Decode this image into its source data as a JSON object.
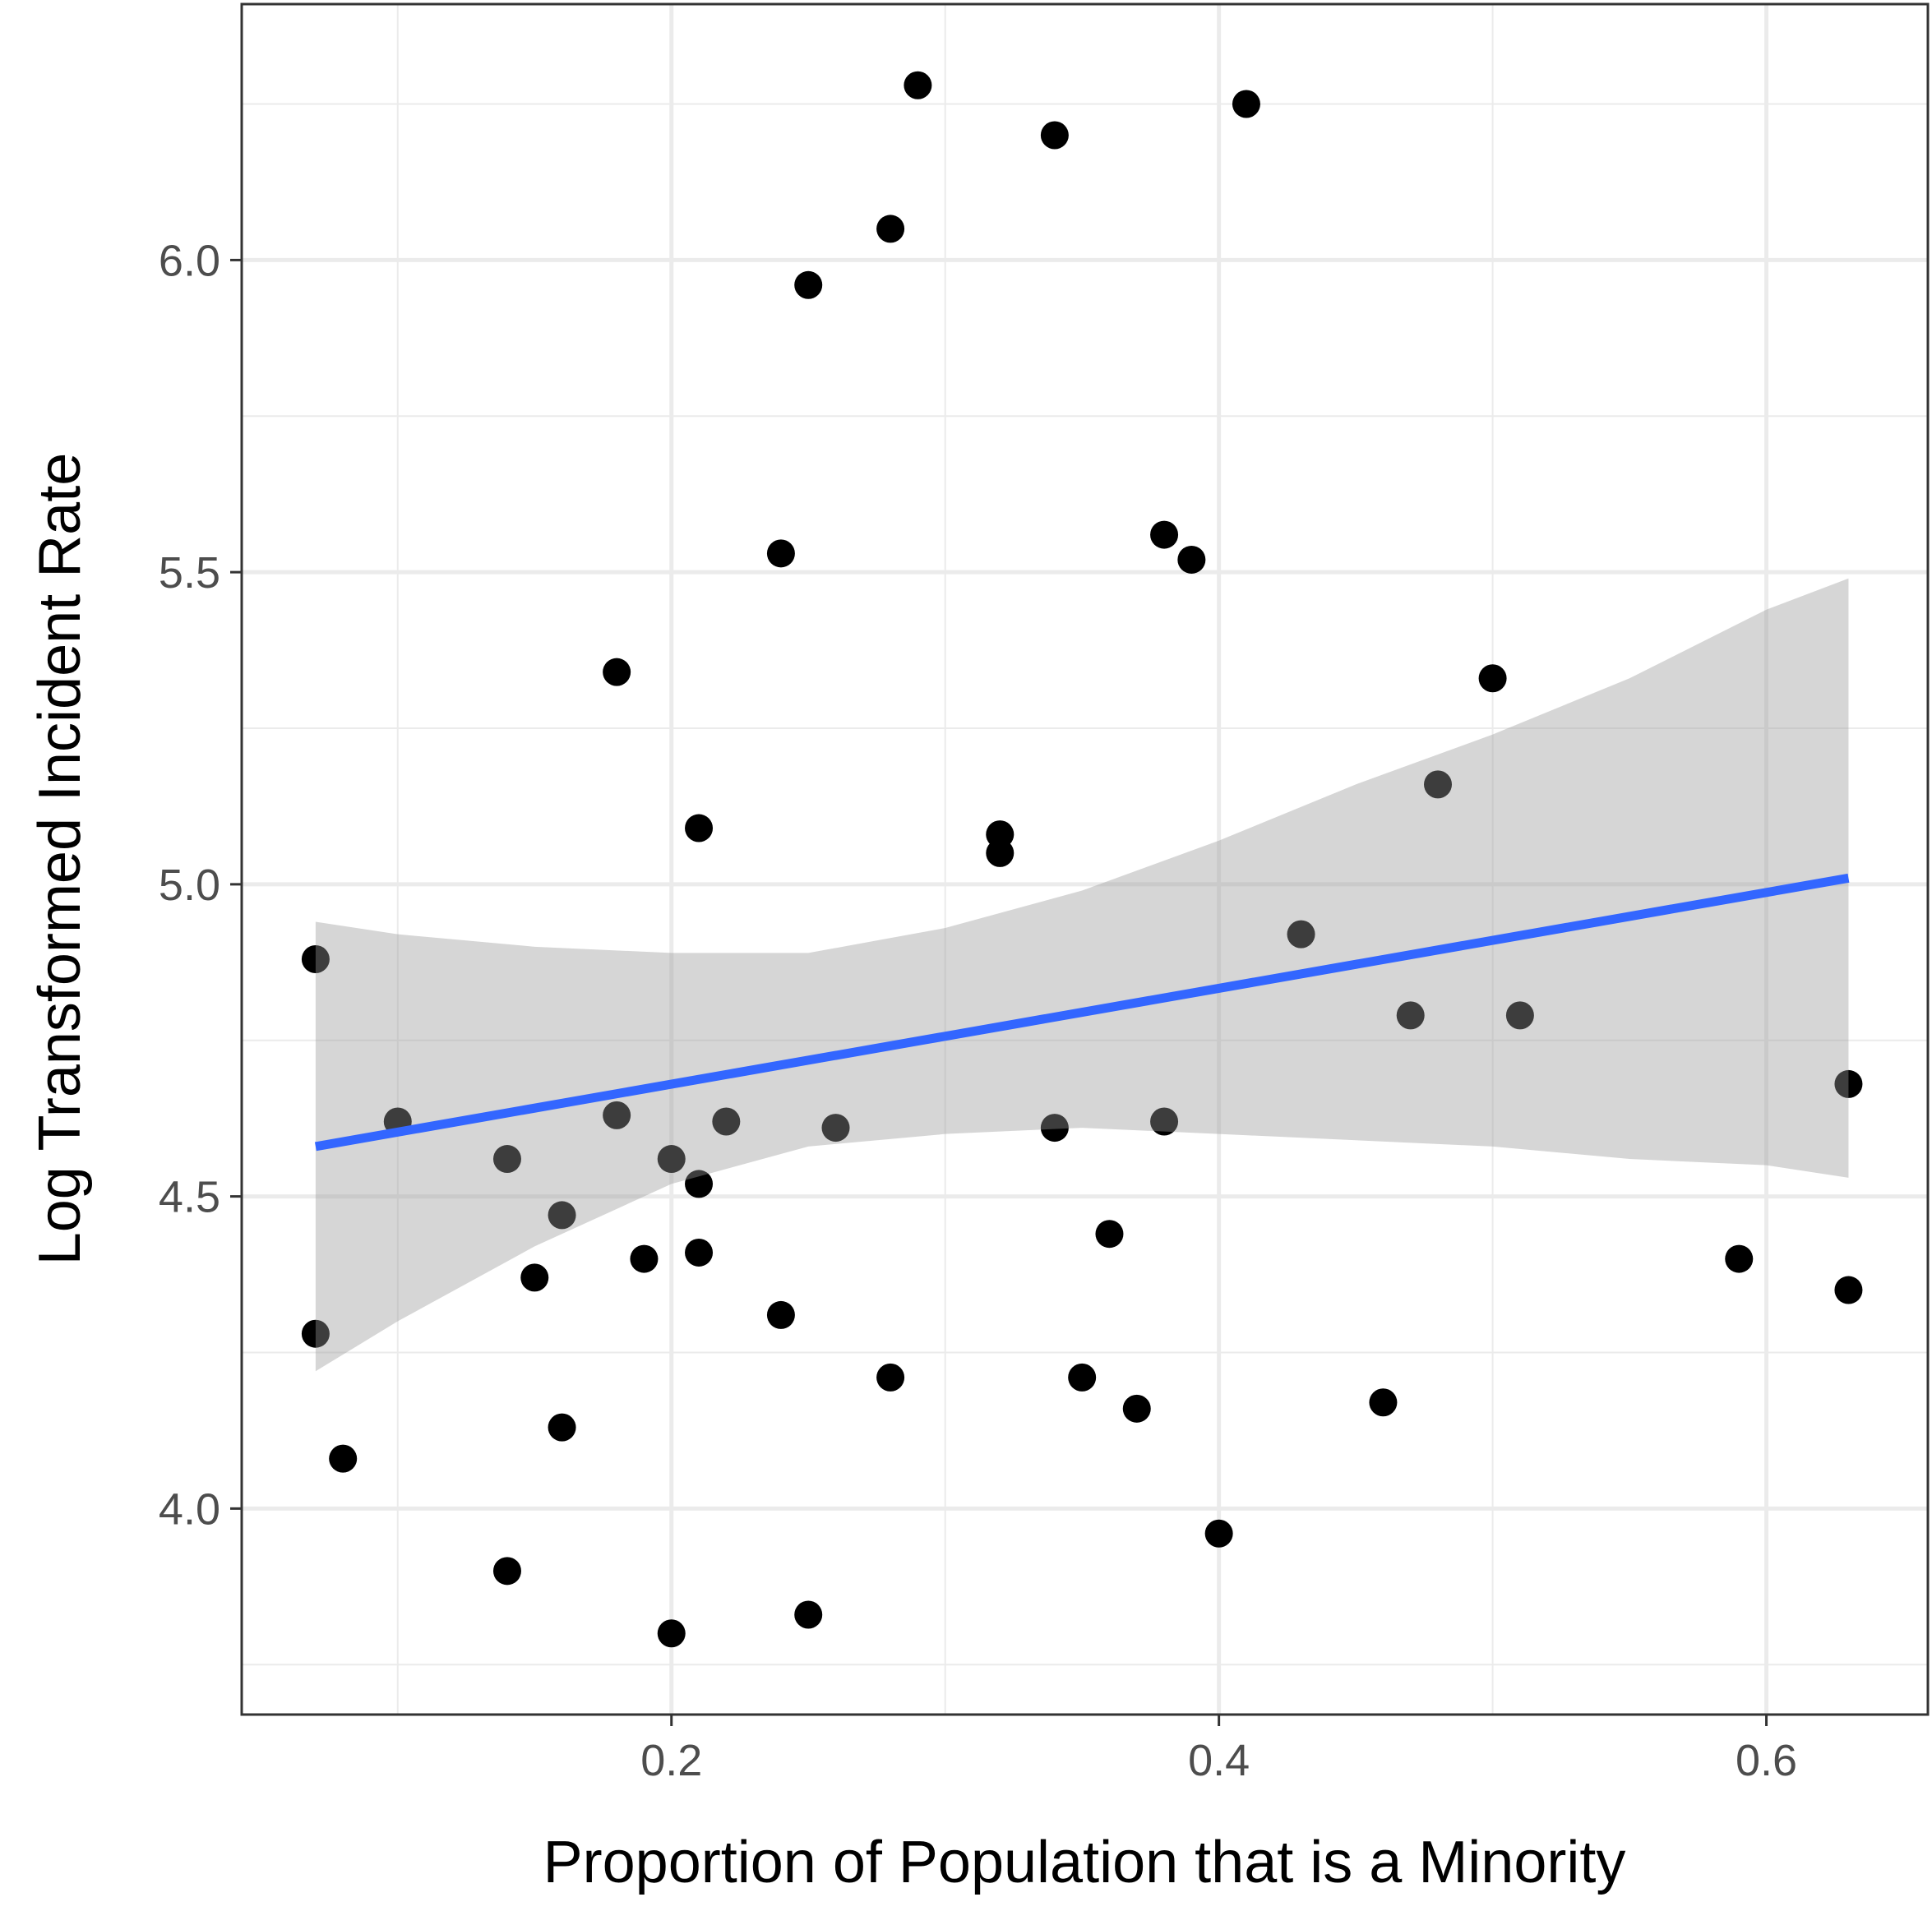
{
  "chart_data": {
    "type": "scatter",
    "xlabel": "Proportion of Population that is a Minority",
    "ylabel": "Log Transformed Incident Rate",
    "xlim": [
      0.043,
      0.659
    ],
    "ylim": [
      3.67,
      6.41
    ],
    "x_ticks": [
      0.2,
      0.4,
      0.6
    ],
    "x_tick_labels": [
      "0.2",
      "0.4",
      "0.6"
    ],
    "x_minor_ticks": [
      0.1,
      0.3,
      0.5
    ],
    "y_ticks": [
      4.0,
      4.5,
      5.0,
      5.5,
      6.0
    ],
    "y_tick_labels": [
      "4.0",
      "4.5",
      "5.0",
      "5.5",
      "6.0"
    ],
    "y_minor_ticks": [
      3.75,
      4.25,
      4.75,
      5.25,
      5.75,
      6.25
    ],
    "grid": true,
    "points": [
      {
        "x": 0.07,
        "y": 4.88
      },
      {
        "x": 0.07,
        "y": 4.28
      },
      {
        "x": 0.08,
        "y": 4.08
      },
      {
        "x": 0.1,
        "y": 4.62
      },
      {
        "x": 0.14,
        "y": 4.56
      },
      {
        "x": 0.14,
        "y": 3.9
      },
      {
        "x": 0.15,
        "y": 4.37
      },
      {
        "x": 0.16,
        "y": 4.47
      },
      {
        "x": 0.16,
        "y": 4.13
      },
      {
        "x": 0.18,
        "y": 5.34
      },
      {
        "x": 0.18,
        "y": 4.63
      },
      {
        "x": 0.19,
        "y": 4.4
      },
      {
        "x": 0.2,
        "y": 4.56
      },
      {
        "x": 0.2,
        "y": 3.8
      },
      {
        "x": 0.21,
        "y": 5.09
      },
      {
        "x": 0.21,
        "y": 4.52
      },
      {
        "x": 0.21,
        "y": 4.41
      },
      {
        "x": 0.22,
        "y": 4.62
      },
      {
        "x": 0.24,
        "y": 5.53
      },
      {
        "x": 0.24,
        "y": 4.31
      },
      {
        "x": 0.25,
        "y": 5.96
      },
      {
        "x": 0.25,
        "y": 3.83
      },
      {
        "x": 0.26,
        "y": 4.61
      },
      {
        "x": 0.28,
        "y": 6.05
      },
      {
        "x": 0.28,
        "y": 4.21
      },
      {
        "x": 0.29,
        "y": 6.28
      },
      {
        "x": 0.32,
        "y": 5.08
      },
      {
        "x": 0.32,
        "y": 5.05
      },
      {
        "x": 0.34,
        "y": 6.2
      },
      {
        "x": 0.34,
        "y": 4.61
      },
      {
        "x": 0.35,
        "y": 4.21
      },
      {
        "x": 0.36,
        "y": 4.44
      },
      {
        "x": 0.37,
        "y": 4.16
      },
      {
        "x": 0.38,
        "y": 5.56
      },
      {
        "x": 0.38,
        "y": 4.62
      },
      {
        "x": 0.39,
        "y": 5.52
      },
      {
        "x": 0.4,
        "y": 3.96
      },
      {
        "x": 0.41,
        "y": 6.25
      },
      {
        "x": 0.43,
        "y": 4.92
      },
      {
        "x": 0.46,
        "y": 4.17
      },
      {
        "x": 0.47,
        "y": 4.79
      },
      {
        "x": 0.48,
        "y": 5.16
      },
      {
        "x": 0.5,
        "y": 5.33
      },
      {
        "x": 0.51,
        "y": 4.79
      },
      {
        "x": 0.59,
        "y": 4.4
      },
      {
        "x": 0.63,
        "y": 4.68
      },
      {
        "x": 0.63,
        "y": 4.35
      }
    ],
    "fit_line": {
      "x": [
        0.07,
        0.63
      ],
      "y": [
        4.58,
        5.01
      ],
      "color": "#3366FF"
    },
    "confidence_band": {
      "x": [
        0.07,
        0.1,
        0.15,
        0.2,
        0.25,
        0.3,
        0.35,
        0.4,
        0.45,
        0.5,
        0.55,
        0.6,
        0.63
      ],
      "lower": [
        4.22,
        4.3,
        4.42,
        4.52,
        4.58,
        4.6,
        4.61,
        4.6,
        4.59,
        4.58,
        4.56,
        4.55,
        4.53
      ],
      "upper": [
        4.94,
        4.92,
        4.9,
        4.89,
        4.89,
        4.93,
        4.99,
        5.07,
        5.16,
        5.24,
        5.33,
        5.44,
        5.49
      ],
      "color": "#999999"
    }
  }
}
